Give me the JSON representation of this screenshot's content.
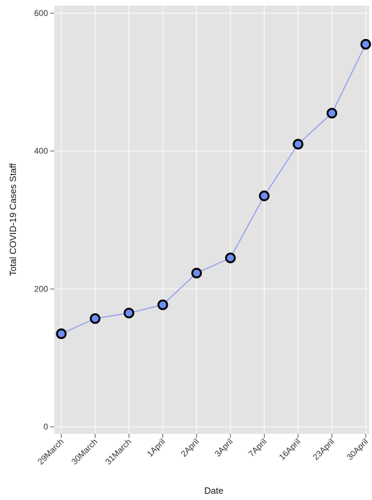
{
  "chart_data": {
    "type": "line",
    "title": "",
    "xlabel": "Date",
    "ylabel": "Total COVID-19 Cases Staff",
    "categories": [
      "29March",
      "30March",
      "31March",
      "1April",
      "2April",
      "3April",
      "7April",
      "16April",
      "23April",
      "30April"
    ],
    "values": [
      135,
      157,
      165,
      177,
      223,
      245,
      335,
      410,
      455,
      555
    ],
    "ylim": [
      0,
      600
    ],
    "yticks": [
      0,
      200,
      400,
      600
    ],
    "grid": true,
    "colors": {
      "line": "#8a9aee",
      "marker_fill": "#6f8ef0",
      "marker_stroke": "#000000",
      "plot_background": "#e3e3e3",
      "gridline": "#f6f6f6"
    }
  }
}
